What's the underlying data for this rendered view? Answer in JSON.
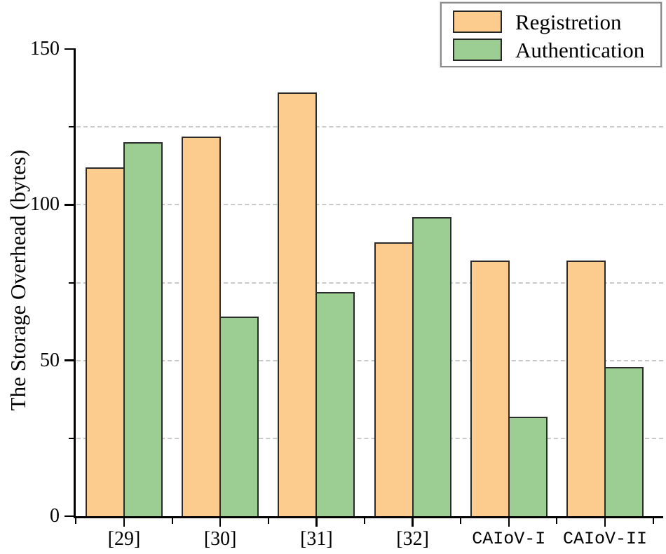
{
  "chart_data": {
    "type": "bar",
    "title": "",
    "xlabel": "",
    "ylabel": "The Storage Overhead (bytes)",
    "categories": [
      "[29]",
      "[30]",
      "[31]",
      "[32]",
      "CAIoV-I",
      "CAIoV-II"
    ],
    "series": [
      {
        "name": "Registretion",
        "color": "#FCCB8E",
        "values": [
          112,
          122,
          136,
          88,
          82,
          82
        ]
      },
      {
        "name": "Authentication",
        "color": "#9CCE93",
        "values": [
          120,
          64,
          72,
          96,
          32,
          48
        ]
      }
    ],
    "ylim": [
      0,
      150
    ],
    "yticks_major": [
      0,
      50,
      100,
      150
    ],
    "yticks_minor": [
      25,
      75,
      125
    ],
    "gridline_values": [
      25,
      50,
      75,
      100,
      125
    ],
    "grid_style": "dashed",
    "legend_position": "top-right",
    "axis_color": "#000000",
    "bar_edge_color": "#2b2b2b",
    "grid_color": "#c9c9c9"
  }
}
